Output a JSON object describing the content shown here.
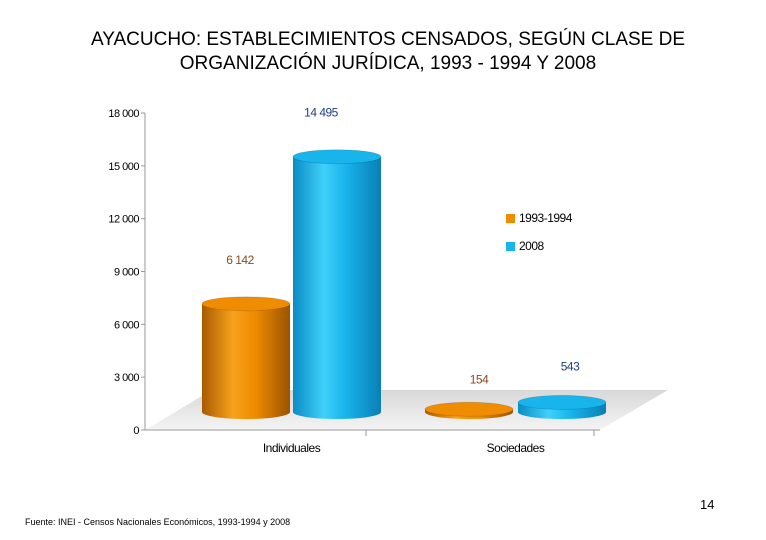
{
  "title": {
    "line1": "AYACUCHO: ESTABLECIMIENTOS CENSADOS, SEGÚN CLASE DE",
    "line2": "ORGANIZACIÓN JURÍDICA, 1993 - 1994 Y 2008"
  },
  "chart_data": {
    "type": "bar",
    "categories": [
      "Individuales",
      "Sociedades"
    ],
    "series": [
      {
        "name": "1993-1994",
        "values": [
          6142,
          154
        ],
        "labels": [
          "6 142",
          "154"
        ],
        "color": "#F08C00",
        "label_color": "#8B4A1E"
      },
      {
        "name": "2008",
        "values": [
          14495,
          543
        ],
        "labels": [
          "14 495",
          "543"
        ],
        "color": "#18B4EC",
        "label_color": "#1F3C88"
      }
    ],
    "yticks": [
      {
        "value": 0,
        "label": "0"
      },
      {
        "value": 3000,
        "label": "3 000"
      },
      {
        "value": 6000,
        "label": "6 000"
      },
      {
        "value": 9000,
        "label": "9 000"
      },
      {
        "value": 12000,
        "label": "12 000"
      },
      {
        "value": 15000,
        "label": "15 000"
      },
      {
        "value": 18000,
        "label": "18 000"
      }
    ],
    "ylim": [
      0,
      18000
    ],
    "legend_position": "right"
  },
  "footer": {
    "source": "Fuente: INEI - Censos Nacionales Económicos, 1993-1994 y 2008",
    "page_number": "14"
  }
}
